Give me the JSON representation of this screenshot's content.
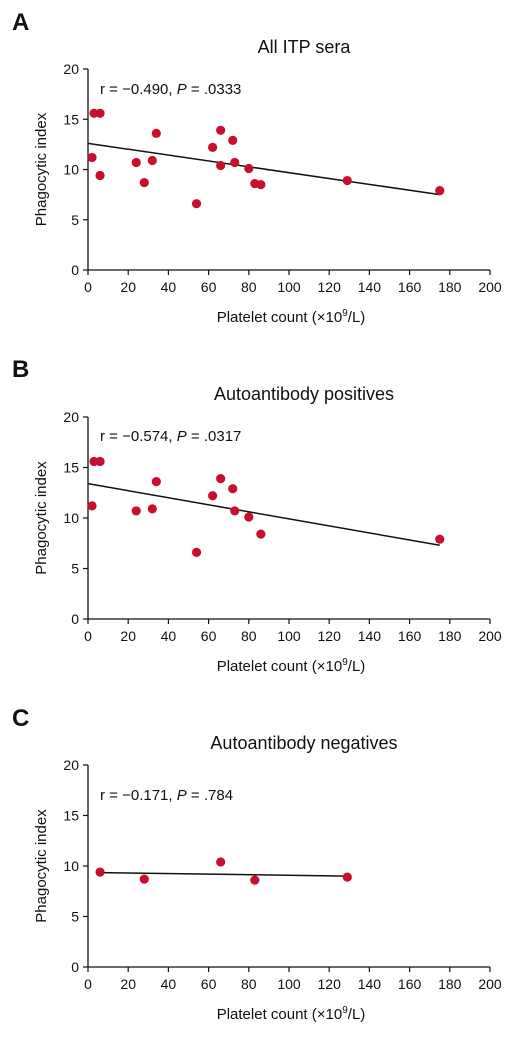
{
  "colors": {
    "point": "#c8102e",
    "line": "#111111"
  },
  "chart_data": [
    {
      "type": "scatter",
      "panel_label": "A",
      "title": "All ITP sera",
      "annotation": {
        "r": "r = −0.490,",
        "p_symbol": "P",
        "p_value": " = .0333"
      },
      "xlabel": "Platelet count (×10",
      "xlabel_sup": "9",
      "xlabel_end": "/L)",
      "ylabel": "Phagocytic index",
      "xlim": [
        0,
        200
      ],
      "ylim": [
        0,
        20
      ],
      "xticks": [
        "0",
        "20",
        "40",
        "60",
        "80",
        "100",
        "120",
        "140",
        "160",
        "180",
        "200"
      ],
      "yticks": [
        "0",
        "5",
        "10",
        "15",
        "20"
      ],
      "grid": false,
      "points": [
        [
          2,
          11.2
        ],
        [
          3,
          15.6
        ],
        [
          6,
          15.6
        ],
        [
          6,
          9.4
        ],
        [
          24,
          10.7
        ],
        [
          28,
          8.7
        ],
        [
          32,
          10.9
        ],
        [
          34,
          13.6
        ],
        [
          54,
          6.6
        ],
        [
          62,
          12.2
        ],
        [
          66,
          13.9
        ],
        [
          66,
          10.4
        ],
        [
          72,
          12.9
        ],
        [
          73,
          10.7
        ],
        [
          80,
          10.1
        ],
        [
          83,
          8.6
        ],
        [
          86,
          8.5
        ],
        [
          129,
          8.9
        ],
        [
          175,
          7.9
        ]
      ],
      "fit_line": [
        [
          0,
          12.6
        ],
        [
          175,
          7.5
        ]
      ]
    },
    {
      "type": "scatter",
      "panel_label": "B",
      "title": "Autoantibody positives",
      "annotation": {
        "r": "r = −0.574,",
        "p_symbol": "P",
        "p_value": " = .0317"
      },
      "xlabel": "Platelet count (×10",
      "xlabel_sup": "9",
      "xlabel_end": "/L)",
      "ylabel": "Phagocytic index",
      "xlim": [
        0,
        200
      ],
      "ylim": [
        0,
        20
      ],
      "xticks": [
        "0",
        "20",
        "40",
        "60",
        "80",
        "100",
        "120",
        "140",
        "160",
        "180",
        "200"
      ],
      "yticks": [
        "0",
        "5",
        "10",
        "15",
        "20"
      ],
      "grid": false,
      "points": [
        [
          2,
          11.2
        ],
        [
          3,
          15.6
        ],
        [
          6,
          15.6
        ],
        [
          24,
          10.7
        ],
        [
          32,
          10.9
        ],
        [
          34,
          13.6
        ],
        [
          54,
          6.6
        ],
        [
          62,
          12.2
        ],
        [
          66,
          13.9
        ],
        [
          72,
          12.9
        ],
        [
          73,
          10.7
        ],
        [
          80,
          10.1
        ],
        [
          86,
          8.4
        ],
        [
          175,
          7.9
        ]
      ],
      "fit_line": [
        [
          0,
          13.4
        ],
        [
          175,
          7.3
        ]
      ]
    },
    {
      "type": "scatter",
      "panel_label": "C",
      "title": "Autoantibody negatives",
      "annotation": {
        "r": "r = −0.171,",
        "p_symbol": "P",
        "p_value": " = .784"
      },
      "xlabel": "Platelet count (×10",
      "xlabel_sup": "9",
      "xlabel_end": "/L)",
      "ylabel": "Phagocytic index",
      "xlim": [
        0,
        200
      ],
      "ylim": [
        0,
        20
      ],
      "xticks": [
        "0",
        "20",
        "40",
        "60",
        "80",
        "100",
        "120",
        "140",
        "160",
        "180",
        "200"
      ],
      "yticks": [
        "0",
        "5",
        "10",
        "15",
        "20"
      ],
      "grid": false,
      "points": [
        [
          6,
          9.4
        ],
        [
          28,
          8.7
        ],
        [
          66,
          10.4
        ],
        [
          83,
          8.6
        ],
        [
          129,
          8.9
        ]
      ],
      "fit_line": [
        [
          6,
          9.35
        ],
        [
          129,
          9.0
        ]
      ]
    }
  ]
}
